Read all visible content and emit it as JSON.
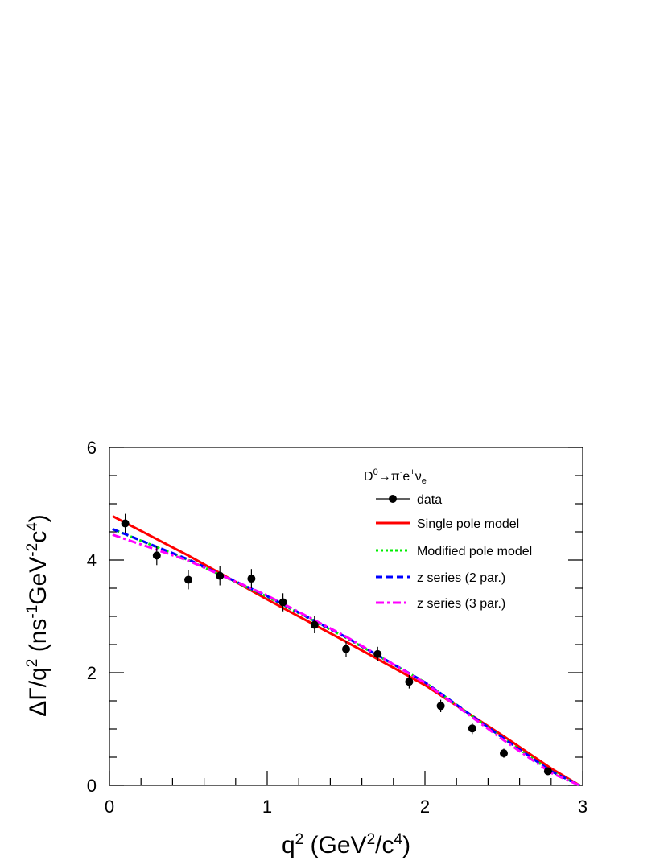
{
  "chart_data": {
    "type": "line",
    "title": "",
    "xlabel": {
      "main": "q",
      "sup1": "2",
      "rest1": " (GeV",
      "sup2": "2",
      "rest2": "/c",
      "sup3": "4",
      "rest3": ")"
    },
    "ylabel": {
      "main": "ΔΓ/q",
      "sup1": "2",
      "rest1": " (ns",
      "sup2": "-1",
      "rest2": "GeV",
      "sup3": "-2",
      "rest3": "c",
      "sup4": "4",
      "rest4": ")"
    },
    "xlim": [
      0,
      3
    ],
    "ylim": [
      0,
      6
    ],
    "x_ticks": [
      "0",
      "1",
      "2",
      "3"
    ],
    "y_ticks": [
      "0",
      "2",
      "4",
      "6"
    ],
    "grid": false,
    "legend_position": "top-right",
    "legend_header": {
      "base": "D",
      "sup0": "0",
      "arrow": "→",
      "pi": "π",
      "supminus": "-",
      "e": "e",
      "supplus": "+",
      "nu": "ν",
      "sube": "e"
    },
    "data_series": {
      "name": "data",
      "points": [
        {
          "x": 0.1,
          "y": 4.65,
          "err": 0.17
        },
        {
          "x": 0.3,
          "y": 4.08,
          "err": 0.17
        },
        {
          "x": 0.5,
          "y": 3.65,
          "err": 0.17
        },
        {
          "x": 0.7,
          "y": 3.72,
          "err": 0.17
        },
        {
          "x": 0.9,
          "y": 3.67,
          "err": 0.17
        },
        {
          "x": 1.1,
          "y": 3.25,
          "err": 0.16
        },
        {
          "x": 1.3,
          "y": 2.85,
          "err": 0.15
        },
        {
          "x": 1.5,
          "y": 2.42,
          "err": 0.14
        },
        {
          "x": 1.7,
          "y": 2.33,
          "err": 0.13
        },
        {
          "x": 1.9,
          "y": 1.84,
          "err": 0.12
        },
        {
          "x": 2.1,
          "y": 1.41,
          "err": 0.11
        },
        {
          "x": 2.3,
          "y": 1.01,
          "err": 0.1
        },
        {
          "x": 2.5,
          "y": 0.57,
          "err": 0.08
        },
        {
          "x": 2.78,
          "y": 0.25,
          "err": 0.06
        }
      ]
    },
    "series": [
      {
        "name": "Single pole model",
        "color": "#ff0000",
        "style": "solid",
        "x": [
          0.02,
          0.5,
          1.0,
          1.5,
          2.0,
          2.5,
          2.8,
          2.98
        ],
        "y": [
          4.78,
          4.08,
          3.3,
          2.55,
          1.78,
          0.87,
          0.3,
          0.0
        ]
      },
      {
        "name": "Modified pole model",
        "color": "#00ee00",
        "style": "dotted",
        "x": [
          0.02,
          0.5,
          1.0,
          1.5,
          2.0,
          2.5,
          2.8,
          2.98
        ],
        "y": [
          4.55,
          4.0,
          3.35,
          2.62,
          1.83,
          0.83,
          0.25,
          0.0
        ]
      },
      {
        "name": "z series (2 par.)",
        "color": "#0000ff",
        "style": "dashed",
        "x": [
          0.02,
          0.5,
          1.0,
          1.5,
          2.0,
          2.5,
          2.8,
          2.98
        ],
        "y": [
          4.55,
          4.01,
          3.36,
          2.63,
          1.83,
          0.83,
          0.25,
          0.0
        ]
      },
      {
        "name": "z series (3 par.)",
        "color": "#ff00ff",
        "style": "dashdot",
        "x": [
          0.02,
          0.5,
          1.0,
          1.5,
          2.0,
          2.5,
          2.8,
          2.98
        ],
        "y": [
          4.45,
          3.99,
          3.37,
          2.64,
          1.82,
          0.8,
          0.22,
          0.0
        ]
      }
    ]
  }
}
